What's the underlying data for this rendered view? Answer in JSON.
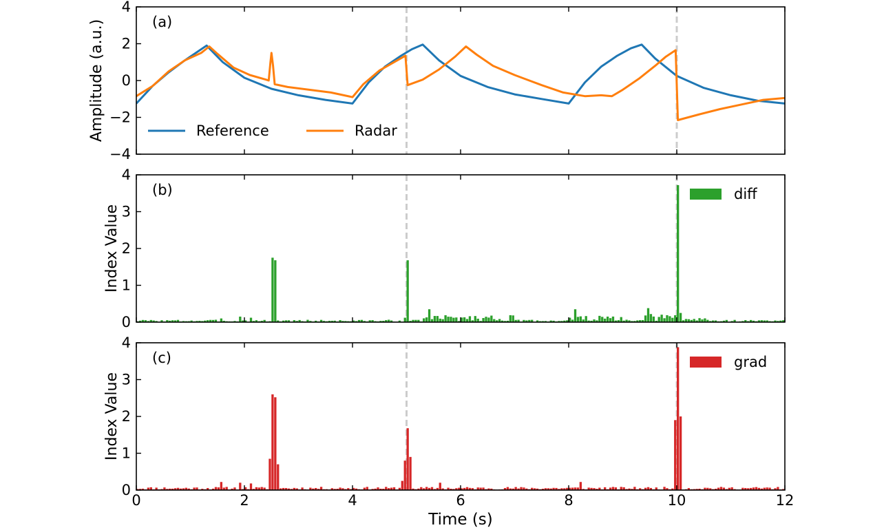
{
  "chart_data": [
    {
      "panel_label": "(a)",
      "type": "line",
      "ylabel": "Amplitude (a.u.)",
      "xlim": [
        0,
        12
      ],
      "ylim": [
        -4,
        4
      ],
      "yticks": [
        -4,
        -2,
        0,
        2,
        4
      ],
      "legend_placement": "lower-left",
      "vlines": [
        5,
        10
      ],
      "series": [
        {
          "name": "Reference",
          "color": "#1f77b4",
          "points": [
            [
              0,
              -1.25
            ],
            [
              0.3,
              -0.3
            ],
            [
              0.6,
              0.45
            ],
            [
              0.9,
              1.1
            ],
            [
              1.15,
              1.6
            ],
            [
              1.3,
              1.9
            ],
            [
              1.6,
              1.0
            ],
            [
              2.0,
              0.15
            ],
            [
              2.5,
              -0.45
            ],
            [
              3.0,
              -0.8
            ],
            [
              3.5,
              -1.05
            ],
            [
              4.0,
              -1.25
            ],
            [
              4.3,
              -0.1
            ],
            [
              4.6,
              0.75
            ],
            [
              4.9,
              1.35
            ],
            [
              5.1,
              1.7
            ],
            [
              5.3,
              1.95
            ],
            [
              5.6,
              1.1
            ],
            [
              6.0,
              0.25
            ],
            [
              6.5,
              -0.35
            ],
            [
              7.0,
              -0.75
            ],
            [
              7.5,
              -1.0
            ],
            [
              8.0,
              -1.25
            ],
            [
              8.3,
              -0.1
            ],
            [
              8.6,
              0.75
            ],
            [
              8.9,
              1.35
            ],
            [
              9.15,
              1.75
            ],
            [
              9.35,
              1.95
            ],
            [
              9.6,
              1.2
            ],
            [
              10.0,
              0.25
            ],
            [
              10.5,
              -0.4
            ],
            [
              11.0,
              -0.8
            ],
            [
              11.5,
              -1.1
            ],
            [
              12.0,
              -1.25
            ]
          ]
        },
        {
          "name": "Radar",
          "color": "#ff7f0e",
          "points": [
            [
              0,
              -0.85
            ],
            [
              0.3,
              -0.3
            ],
            [
              0.6,
              0.5
            ],
            [
              0.9,
              1.1
            ],
            [
              1.2,
              1.5
            ],
            [
              1.35,
              1.85
            ],
            [
              1.5,
              1.45
            ],
            [
              1.8,
              0.7
            ],
            [
              2.1,
              0.3
            ],
            [
              2.4,
              0.05
            ],
            [
              2.45,
              0.0
            ],
            [
              2.48,
              0.95
            ],
            [
              2.5,
              1.5
            ],
            [
              2.53,
              0.8
            ],
            [
              2.56,
              -0.2
            ],
            [
              2.8,
              -0.35
            ],
            [
              3.2,
              -0.5
            ],
            [
              3.6,
              -0.65
            ],
            [
              4.0,
              -0.9
            ],
            [
              4.2,
              -0.2
            ],
            [
              4.5,
              0.55
            ],
            [
              4.8,
              1.05
            ],
            [
              4.98,
              1.35
            ],
            [
              5.02,
              -0.25
            ],
            [
              5.3,
              0.05
            ],
            [
              5.6,
              0.6
            ],
            [
              5.9,
              1.3
            ],
            [
              6.1,
              1.85
            ],
            [
              6.3,
              1.4
            ],
            [
              6.6,
              0.8
            ],
            [
              7.0,
              0.3
            ],
            [
              7.5,
              -0.25
            ],
            [
              7.9,
              -0.65
            ],
            [
              8.3,
              -0.85
            ],
            [
              8.6,
              -0.8
            ],
            [
              8.8,
              -0.85
            ],
            [
              9.0,
              -0.5
            ],
            [
              9.3,
              0.1
            ],
            [
              9.6,
              0.8
            ],
            [
              9.8,
              1.3
            ],
            [
              9.98,
              1.65
            ],
            [
              10.02,
              -2.15
            ],
            [
              10.4,
              -1.85
            ],
            [
              10.8,
              -1.55
            ],
            [
              11.2,
              -1.3
            ],
            [
              11.6,
              -1.05
            ],
            [
              12.0,
              -0.95
            ]
          ]
        }
      ]
    },
    {
      "panel_label": "(b)",
      "type": "bar",
      "ylabel": "Index Value",
      "xlim": [
        0,
        12
      ],
      "ylim": [
        0,
        4
      ],
      "yticks": [
        0,
        1,
        2,
        3,
        4
      ],
      "legend_placement": "top-right",
      "vlines": [
        5,
        10
      ],
      "series": [
        {
          "name": "diff",
          "color": "#2ca02c",
          "seed": 3,
          "baseline": 0.06,
          "bin_width": 0.05,
          "regions": [
            {
              "from": 5.3,
              "to": 7.0,
              "level": 0.18
            },
            {
              "from": 8.0,
              "to": 9.0,
              "level": 0.16
            },
            {
              "from": 9.4,
              "to": 10.0,
              "level": 0.2
            },
            {
              "from": 10.0,
              "to": 10.6,
              "level": 0.12
            }
          ],
          "spikes": [
            {
              "x": 1.55,
              "value": 0.1
            },
            {
              "x": 1.9,
              "value": 0.15
            },
            {
              "x": 2.1,
              "value": 0.12
            },
            {
              "x": 2.48,
              "value": 1.75
            },
            {
              "x": 2.53,
              "value": 1.68
            },
            {
              "x": 4.95,
              "value": 0.12
            },
            {
              "x": 5.0,
              "value": 1.68
            },
            {
              "x": 5.4,
              "value": 0.35
            },
            {
              "x": 8.1,
              "value": 0.35
            },
            {
              "x": 9.45,
              "value": 0.38
            },
            {
              "x": 10.0,
              "value": 3.72
            },
            {
              "x": 10.05,
              "value": 0.25
            }
          ]
        }
      ]
    },
    {
      "panel_label": "(c)",
      "type": "bar",
      "xlabel": "Time (s)",
      "ylabel": "Index Value",
      "xlim": [
        0,
        12
      ],
      "ylim": [
        0,
        4
      ],
      "xticks": [
        0,
        2,
        4,
        6,
        8,
        10,
        12
      ],
      "yticks": [
        0,
        1,
        2,
        3,
        4
      ],
      "legend_placement": "top-right",
      "vlines": [
        5,
        10
      ],
      "series": [
        {
          "name": "grad",
          "color": "#d62728",
          "seed": 11,
          "baseline": 0.08,
          "bin_width": 0.05,
          "regions": [],
          "spikes": [
            {
              "x": 1.55,
              "value": 0.22
            },
            {
              "x": 1.9,
              "value": 0.2
            },
            {
              "x": 2.1,
              "value": 0.18
            },
            {
              "x": 2.43,
              "value": 0.85
            },
            {
              "x": 2.48,
              "value": 2.6
            },
            {
              "x": 2.53,
              "value": 2.52
            },
            {
              "x": 2.58,
              "value": 0.7
            },
            {
              "x": 4.9,
              "value": 0.25
            },
            {
              "x": 4.95,
              "value": 0.8
            },
            {
              "x": 5.0,
              "value": 1.68
            },
            {
              "x": 5.05,
              "value": 0.9
            },
            {
              "x": 5.6,
              "value": 0.2
            },
            {
              "x": 8.2,
              "value": 0.22
            },
            {
              "x": 9.95,
              "value": 1.9
            },
            {
              "x": 10.0,
              "value": 3.88
            },
            {
              "x": 10.05,
              "value": 2.0
            }
          ]
        }
      ]
    }
  ]
}
